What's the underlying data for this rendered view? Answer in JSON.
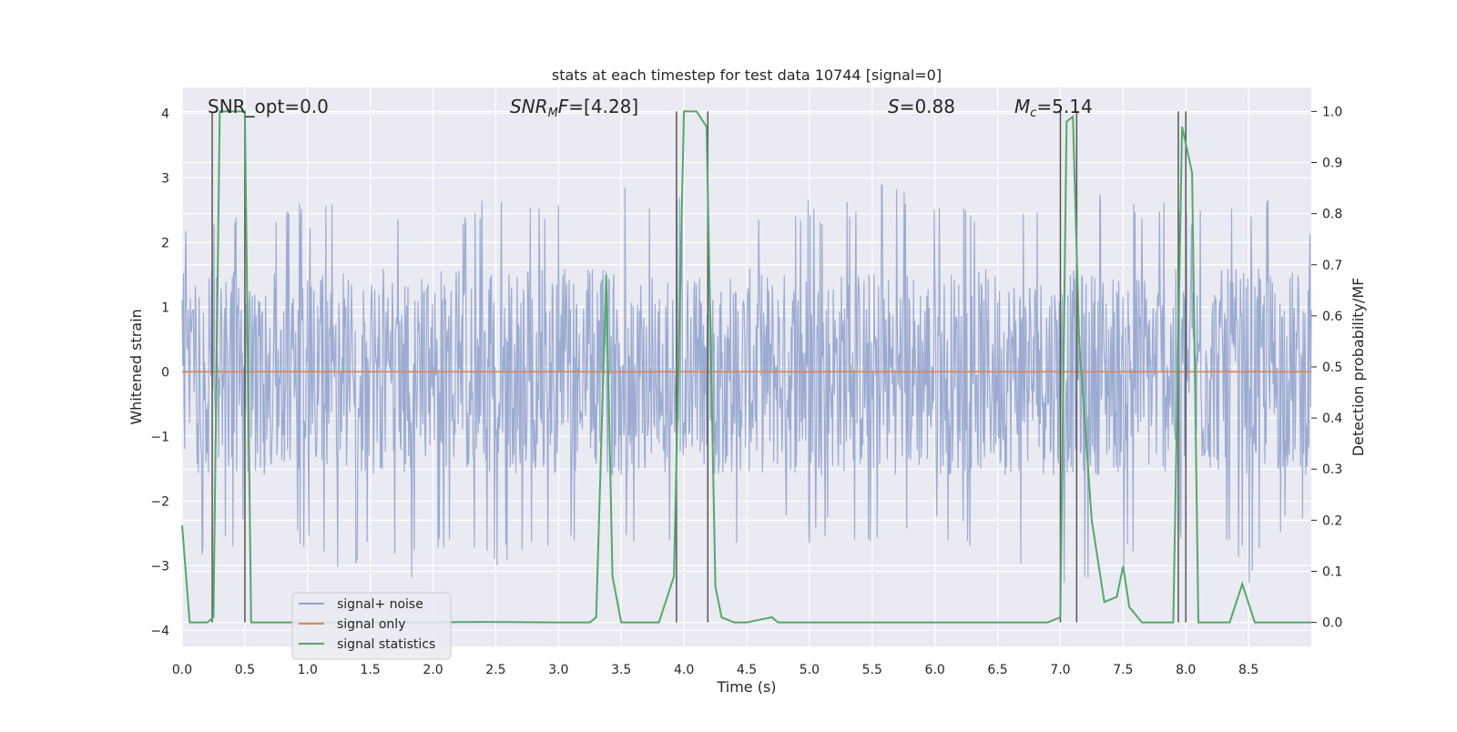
{
  "chart_data": {
    "type": "line",
    "title": "stats at each timestep for test data 10744 [signal=0]",
    "xlabel": "Time (s)",
    "ylabel": "Whitened strain",
    "ylabel_right": "Detection probability/MF",
    "xlim": [
      0.0,
      9.0
    ],
    "ylim": [
      -4.25,
      4.4
    ],
    "ylim_right": [
      -0.047,
      1.047
    ],
    "xticks": [
      "0.0",
      "0.5",
      "1.0",
      "1.5",
      "2.0",
      "2.5",
      "3.0",
      "3.5",
      "4.0",
      "4.5",
      "5.0",
      "5.5",
      "6.0",
      "6.5",
      "7.0",
      "7.5",
      "8.0",
      "8.5"
    ],
    "xtick_values": [
      0.0,
      0.5,
      1.0,
      1.5,
      2.0,
      2.5,
      3.0,
      3.5,
      4.0,
      4.5,
      5.0,
      5.5,
      6.0,
      6.5,
      7.0,
      7.5,
      8.0,
      8.5
    ],
    "yticks": [
      "4",
      "3",
      "2",
      "1",
      "0",
      "−1",
      "−2",
      "−3",
      "−4"
    ],
    "ytick_values": [
      4,
      3,
      2,
      1,
      0,
      -1,
      -2,
      -3,
      -4
    ],
    "yticks_right": [
      "1.0",
      "0.9",
      "0.8",
      "0.7",
      "0.6",
      "0.5",
      "0.4",
      "0.3",
      "0.2",
      "0.1",
      "0.0"
    ],
    "ytick_values_right": [
      1.0,
      0.9,
      0.8,
      0.7,
      0.6,
      0.5,
      0.4,
      0.3,
      0.2,
      0.1,
      0.0
    ],
    "annotations": {
      "snr_opt": "SNR_opt=0.0",
      "snr_mf_main": "SNR",
      "snr_mf_sub": "M",
      "snr_mf_tail": "F=[4.28]",
      "s_main": "S",
      "s_tail": "=0.88",
      "mc_main": "M",
      "mc_sub": "c",
      "mc_tail": "=5.14"
    },
    "noise_envelope": {
      "x": [
        0.0,
        0.25,
        0.5,
        0.75,
        1.0,
        1.25,
        1.5,
        1.75,
        2.0,
        2.25,
        2.5,
        2.75,
        3.0,
        3.25,
        3.5,
        3.75,
        4.0,
        4.25,
        4.5,
        4.75,
        5.0,
        5.25,
        5.5,
        5.75,
        6.0,
        6.25,
        6.5,
        6.75,
        7.0,
        7.25,
        7.5,
        7.75,
        8.0,
        8.25,
        8.5,
        8.75,
        9.0
      ],
      "upper": [
        2.4,
        2.6,
        2.7,
        2.7,
        2.6,
        2.8,
        2.7,
        2.6,
        2.7,
        2.6,
        2.8,
        2.8,
        2.7,
        2.7,
        3.0,
        2.8,
        2.7,
        2.6,
        2.7,
        2.5,
        2.7,
        2.6,
        3.2,
        2.8,
        2.7,
        2.6,
        2.8,
        2.7,
        3.4,
        2.8,
        2.8,
        2.7,
        2.6,
        2.7,
        2.8,
        2.7,
        2.2
      ],
      "lower": [
        -2.7,
        -3.0,
        -2.6,
        -2.6,
        -2.8,
        -3.2,
        -2.8,
        -3.4,
        -2.8,
        -2.6,
        -3.2,
        -2.9,
        -2.7,
        -2.6,
        -2.9,
        -2.7,
        -2.6,
        -2.6,
        -2.8,
        -2.5,
        -2.7,
        -2.6,
        -2.7,
        -2.8,
        -2.6,
        -2.7,
        -2.8,
        -3.5,
        -3.4,
        -3.3,
        -3.1,
        -2.8,
        -2.8,
        -2.6,
        -3.3,
        -2.7,
        -2.2
      ]
    },
    "series": [
      {
        "name": "signal+ noise",
        "color": "#8da0cb",
        "kind": "noise"
      },
      {
        "name": "signal only",
        "color": "#dd8452",
        "values_x": [
          0.0,
          9.0
        ],
        "values_y": [
          0.0,
          0.0
        ]
      },
      {
        "name": "signal statistics",
        "color": "#55a868",
        "axis": "right",
        "x": [
          0.0,
          0.06,
          0.2,
          0.25,
          0.3,
          0.5,
          0.55,
          0.6,
          1.0,
          2.0,
          2.4,
          3.0,
          3.25,
          3.3,
          3.38,
          3.43,
          3.5,
          3.8,
          3.92,
          4.0,
          4.1,
          4.18,
          4.25,
          4.3,
          4.4,
          4.5,
          4.6,
          4.7,
          4.75,
          5.0,
          6.0,
          6.9,
          7.0,
          7.05,
          7.1,
          7.15,
          7.25,
          7.35,
          7.45,
          7.5,
          7.55,
          7.65,
          7.75,
          7.9,
          7.97,
          8.05,
          8.1,
          8.15,
          8.2,
          8.35,
          8.45,
          8.55,
          8.7,
          9.0
        ],
        "y": [
          0.19,
          0.0,
          0.0,
          0.01,
          1.0,
          1.0,
          0.0,
          0.0,
          0.0,
          0.0,
          0.001,
          0.0,
          0.0,
          0.01,
          0.68,
          0.09,
          0.0,
          0.0,
          0.09,
          1.0,
          1.0,
          0.97,
          0.07,
          0.01,
          0.0,
          0.0,
          0.005,
          0.01,
          0.0,
          0.0,
          0.0,
          0.0,
          0.01,
          0.98,
          0.99,
          0.55,
          0.2,
          0.04,
          0.05,
          0.11,
          0.03,
          0.0,
          0.0,
          0.0,
          0.97,
          0.88,
          0.0,
          0.0,
          0.0,
          0.0,
          0.075,
          0.0,
          0.0,
          0.0
        ]
      }
    ],
    "vlines_x": [
      0.24,
      0.5,
      3.94,
      4.19,
      7.0,
      7.13,
      7.94,
      8.0
    ],
    "legend": {
      "placement": "lower-left",
      "entries": [
        {
          "label": "signal+ noise",
          "color": "#8da0cb"
        },
        {
          "label": "signal only",
          "color": "#dd8452"
        },
        {
          "label": "signal statistics",
          "color": "#55a868"
        }
      ]
    }
  }
}
